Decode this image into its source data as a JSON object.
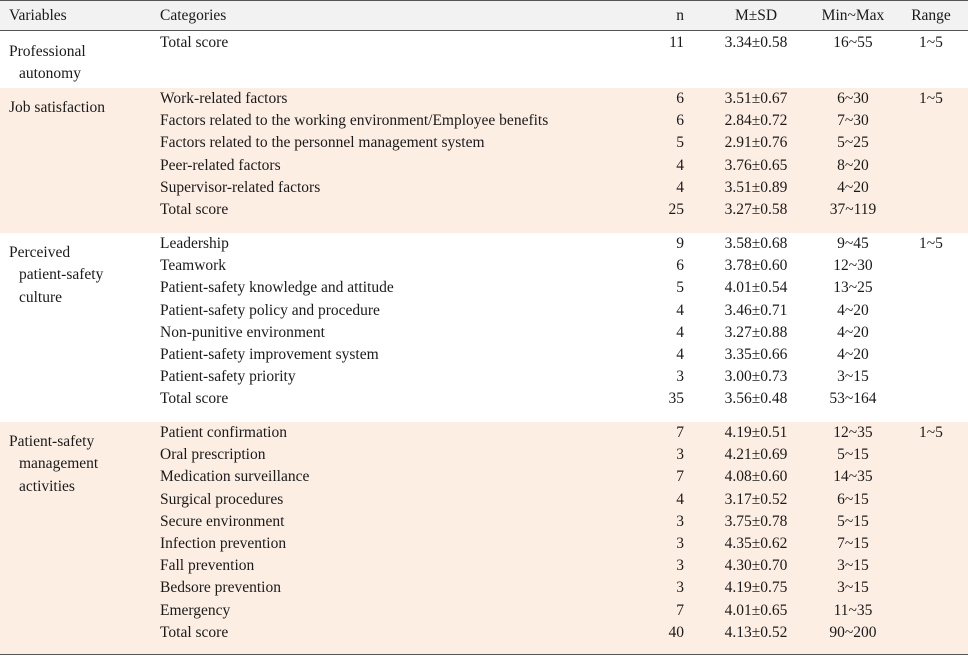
{
  "header": {
    "variables": "Variables",
    "categories": "Categories",
    "n": "n",
    "msd": "M±SD",
    "minmax": "Min~Max",
    "range": "Range"
  },
  "groups": [
    {
      "variable_lines": [
        "Professional",
        "autonomy"
      ],
      "range": "1~5",
      "rows": [
        {
          "category": "Total score",
          "n": "11",
          "msd": "3.34±0.58",
          "minmax": "16~55"
        }
      ]
    },
    {
      "variable_lines": [
        "Job satisfaction"
      ],
      "range": "1~5",
      "rows": [
        {
          "category": "Work-related factors",
          "n": "6",
          "msd": "3.51±0.67",
          "minmax": "6~30"
        },
        {
          "category": "Factors related to the working environment/Employee benefits",
          "n": "6",
          "msd": "2.84±0.72",
          "minmax": "7~30"
        },
        {
          "category": "Factors related to the personnel management system",
          "n": "5",
          "msd": "2.91±0.76",
          "minmax": "5~25"
        },
        {
          "category": "Peer-related factors",
          "n": "4",
          "msd": "3.76±0.65",
          "minmax": "8~20"
        },
        {
          "category": "Supervisor-related factors",
          "n": "4",
          "msd": "3.51±0.89",
          "minmax": "4~20"
        },
        {
          "category": "Total score",
          "n": "25",
          "msd": "3.27±0.58",
          "minmax": "37~119"
        }
      ]
    },
    {
      "variable_lines": [
        "Perceived",
        "patient-safety",
        "culture"
      ],
      "range": "1~5",
      "rows": [
        {
          "category": "Leadership",
          "n": "9",
          "msd": "3.58±0.68",
          "minmax": "9~45"
        },
        {
          "category": "Teamwork",
          "n": "6",
          "msd": "3.78±0.60",
          "minmax": "12~30"
        },
        {
          "category": "Patient-safety knowledge and attitude",
          "n": "5",
          "msd": "4.01±0.54",
          "minmax": "13~25"
        },
        {
          "category": "Patient-safety policy and procedure",
          "n": "4",
          "msd": "3.46±0.71",
          "minmax": "4~20"
        },
        {
          "category": "Non-punitive environment",
          "n": "4",
          "msd": "3.27±0.88",
          "minmax": "4~20"
        },
        {
          "category": "Patient-safety improvement system",
          "n": "4",
          "msd": "3.35±0.66",
          "minmax": "4~20"
        },
        {
          "category": "Patient-safety priority",
          "n": "3",
          "msd": "3.00±0.73",
          "minmax": "3~15"
        },
        {
          "category": "Total score",
          "n": "35",
          "msd": "3.56±0.48",
          "minmax": "53~164"
        }
      ]
    },
    {
      "variable_lines": [
        "Patient-safety",
        "management",
        "activities"
      ],
      "range": "1~5",
      "rows": [
        {
          "category": "Patient confirmation",
          "n": "7",
          "msd": "4.19±0.51",
          "minmax": "12~35"
        },
        {
          "category": "Oral prescription",
          "n": "3",
          "msd": "4.21±0.69",
          "minmax": "5~15"
        },
        {
          "category": "Medication surveillance",
          "n": "7",
          "msd": "4.08±0.60",
          "minmax": "14~35"
        },
        {
          "category": "Surgical procedures",
          "n": "4",
          "msd": "3.17±0.52",
          "minmax": "6~15"
        },
        {
          "category": "Secure environment",
          "n": "3",
          "msd": "3.75±0.78",
          "minmax": "5~15"
        },
        {
          "category": "Infection prevention",
          "n": "3",
          "msd": "4.35±0.62",
          "minmax": "7~15"
        },
        {
          "category": "Fall prevention",
          "n": "3",
          "msd": "4.30±0.70",
          "minmax": "3~15"
        },
        {
          "category": "Bedsore prevention",
          "n": "3",
          "msd": "4.19±0.75",
          "minmax": "3~15"
        },
        {
          "category": "Emergency",
          "n": "7",
          "msd": "4.01±0.65",
          "minmax": "11~35"
        },
        {
          "category": "Total score",
          "n": "40",
          "msd": "4.13±0.52",
          "minmax": "90~200"
        }
      ]
    }
  ]
}
